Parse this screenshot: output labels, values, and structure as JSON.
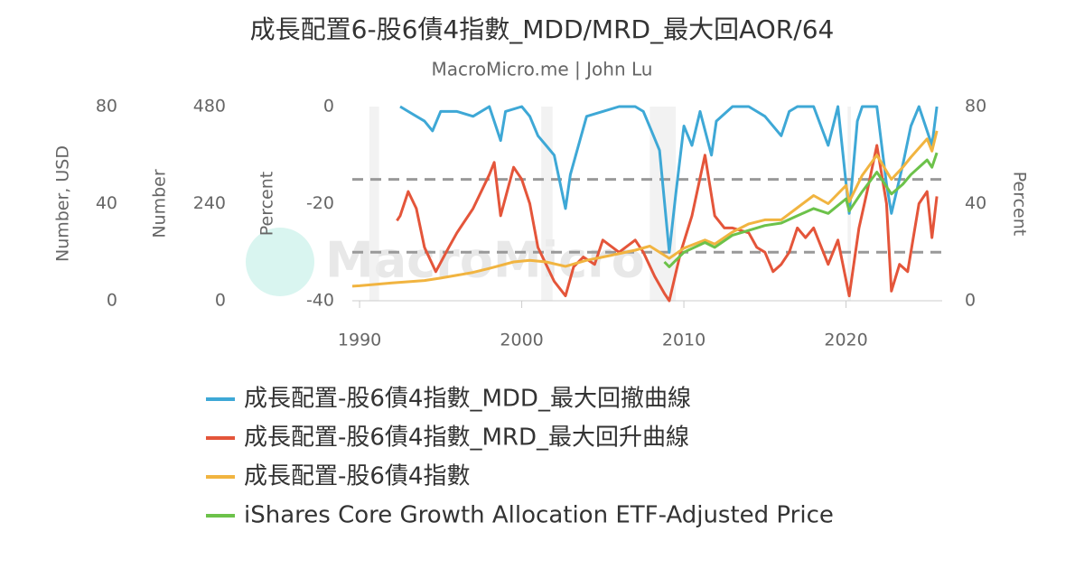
{
  "chart_data": {
    "type": "line",
    "title": "成長配置6-股6債4指數_MDD/MRD_最大回AOR/64",
    "subtitle": "MacroMicro.me | John Lu",
    "watermark": "MacroMicro",
    "xlim": [
      1989.55,
      2025.93
    ],
    "xticks": [
      1990,
      2000,
      2010,
      2020
    ],
    "axes": [
      {
        "label": "Number, USD",
        "lim": [
          0,
          80
        ],
        "ticks": [
          0,
          40,
          80
        ],
        "side": "left"
      },
      {
        "label": "Number",
        "lim": [
          0,
          480
        ],
        "ticks": [
          0,
          240,
          480
        ],
        "side": "left"
      },
      {
        "label": "Percent",
        "lim": [
          -40,
          0
        ],
        "ticks": [
          -40,
          -20,
          0
        ],
        "side": "left"
      },
      {
        "label": "Percent",
        "lim": [
          0,
          80
        ],
        "ticks": [
          0,
          40,
          80
        ],
        "side": "right"
      }
    ],
    "reference_lines": {
      "axis": 3,
      "values": [
        20,
        50
      ],
      "color": "#999999"
    },
    "shaded_periods": [
      [
        1990.6,
        1991.2
      ],
      [
        2001.2,
        2001.9
      ],
      [
        2007.9,
        2009.5
      ],
      [
        2020.1,
        2020.3
      ]
    ],
    "series": [
      {
        "name": "成長配置-股6債4指數_MDD_最大回撤曲線",
        "color": "#3ea8d6",
        "axis": 2,
        "x": [
          1992.5,
          1993,
          1994,
          1994.5,
          1995,
          1996,
          1997,
          1998,
          1998.7,
          1999,
          2000,
          2000.5,
          2001,
          2001.5,
          2002,
          2002.7,
          2003,
          2003.5,
          2004,
          2005,
          2006,
          2007,
          2007.5,
          2008,
          2008.5,
          2009.1,
          2009.5,
          2010,
          2010.5,
          2011,
          2011.7,
          2012,
          2013,
          2014,
          2015,
          2016,
          2016.5,
          2017,
          2018,
          2018.9,
          2019.5,
          2020.2,
          2020.7,
          2021,
          2021.9,
          2022.5,
          2022.8,
          2023.5,
          2024,
          2024.5,
          2025.3,
          2025.6
        ],
        "values": [
          0,
          -1,
          -3,
          -5,
          -1,
          -1,
          -2,
          0,
          -7,
          -1,
          0,
          -2,
          -6,
          -8,
          -10,
          -21,
          -14,
          -8,
          -2,
          -1,
          0,
          0,
          -1,
          -5,
          -9,
          -30,
          -18,
          -4,
          -8,
          -1,
          -10,
          -3,
          0,
          0,
          -2,
          -6,
          -1,
          0,
          0,
          -8,
          0,
          -22,
          -3,
          0,
          0,
          -16,
          -22,
          -12,
          -4,
          0,
          -8,
          0
        ]
      },
      {
        "name": "成長配置-股6債4指數_MRD_最大回升曲線",
        "color": "#e4553a",
        "axis": 3,
        "x": [
          1992.3,
          1992.5,
          1993,
          1993.5,
          1994,
          1994.7,
          1995.5,
          1996,
          1997,
          1998,
          1998.3,
          1998.7,
          1999.5,
          2000,
          2000.5,
          2001,
          2001.5,
          2002,
          2002.7,
          2003.2,
          2003.8,
          2004.5,
          2005,
          2006,
          2007,
          2007.5,
          2008.2,
          2008.8,
          2009.1,
          2009.8,
          2010.5,
          2011.3,
          2011.9,
          2012.5,
          2013,
          2014,
          2014.5,
          2015,
          2015.5,
          2016,
          2016.5,
          2017,
          2017.5,
          2018,
          2018.9,
          2019.5,
          2020.2,
          2020.8,
          2021.3,
          2021.9,
          2022.5,
          2022.8,
          2023.3,
          2023.8,
          2024.5,
          2025,
          2025.3,
          2025.6
        ],
        "values": [
          33,
          35,
          45,
          38,
          22,
          12,
          22,
          28,
          38,
          52,
          57,
          35,
          55,
          50,
          40,
          22,
          15,
          8,
          2,
          14,
          18,
          15,
          25,
          20,
          25,
          20,
          10,
          3,
          0,
          20,
          35,
          60,
          35,
          30,
          30,
          28,
          22,
          20,
          12,
          15,
          20,
          30,
          26,
          30,
          15,
          25,
          2,
          30,
          45,
          64,
          40,
          4,
          15,
          12,
          40,
          45,
          26,
          43
        ]
      },
      {
        "name": "成長配置-股6債4指數",
        "color": "#f1b440",
        "axis": 1,
        "x": [
          1989.55,
          1990,
          1992,
          1994,
          1995,
          1997,
          1998,
          1999.5,
          2000.5,
          2001.5,
          2002.7,
          2004,
          2005,
          2007,
          2007.9,
          2009.1,
          2010,
          2011.3,
          2011.9,
          2013,
          2014,
          2015,
          2016,
          2017,
          2018,
          2018.9,
          2020,
          2020.2,
          2021,
          2021.9,
          2022.8,
          2023.5,
          2024,
          2025,
          2025.3,
          2025.6
        ],
        "values": [
          36,
          37,
          44,
          50,
          56,
          70,
          80,
          96,
          100,
          96,
          85,
          100,
          108,
          125,
          135,
          105,
          130,
          150,
          140,
          170,
          190,
          200,
          200,
          230,
          260,
          240,
          285,
          245,
          310,
          360,
          300,
          330,
          355,
          400,
          370,
          420
        ]
      },
      {
        "name": "iShares Core Growth Allocation ETF-Adjusted Price",
        "color": "#6cc24a",
        "axis": 0,
        "x": [
          2008.8,
          2009.1,
          2010,
          2011.3,
          2011.9,
          2013,
          2014,
          2015,
          2016,
          2017,
          2018,
          2018.9,
          2020,
          2020.2,
          2021,
          2021.9,
          2022.8,
          2023.5,
          2024,
          2025,
          2025.3,
          2025.6
        ],
        "values": [
          16,
          14,
          20,
          24,
          22,
          27,
          29,
          31,
          32,
          35,
          38,
          36,
          42,
          37,
          45,
          53,
          44,
          48,
          52,
          58,
          55,
          61
        ]
      }
    ]
  }
}
